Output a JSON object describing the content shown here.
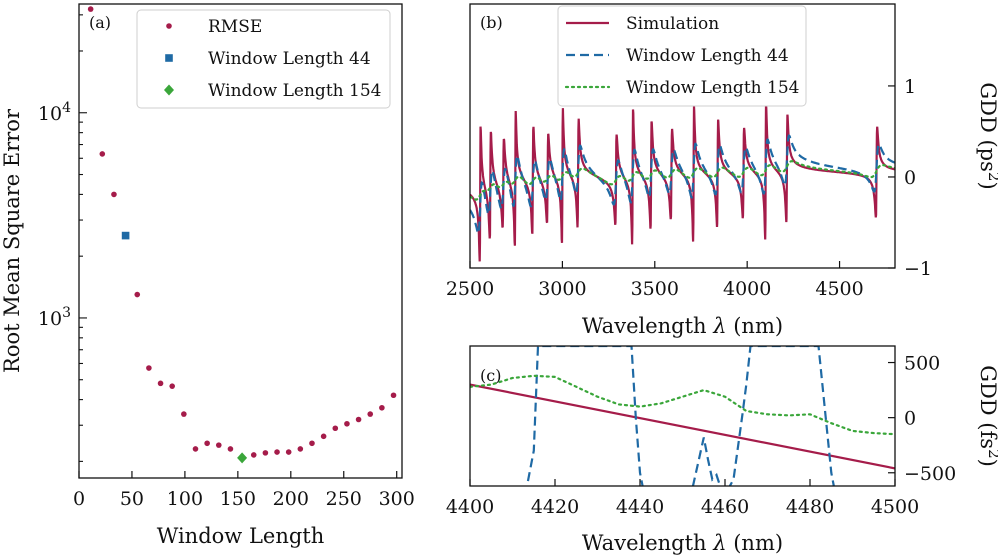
{
  "chart_data": [
    {
      "id": "a",
      "type": "scatter",
      "panel_label": "(a)",
      "xlabel": "Window Length",
      "ylabel": "Root Mean Square Error",
      "xlim": [
        0,
        305
      ],
      "ylim_log10": [
        2.22,
        4.53
      ],
      "yscale": "log",
      "x_ticks": [
        0,
        50,
        100,
        150,
        200,
        250,
        300
      ],
      "y_ticks": [
        {
          "value": 1000,
          "base": "10",
          "exp": "3"
        },
        {
          "value": 10000,
          "base": "10",
          "exp": "4"
        }
      ],
      "legend_position": "top-right",
      "series": [
        {
          "name": "RMSE",
          "color": "#a51c4a",
          "marker": "circle",
          "x": [
            11,
            22,
            33,
            55,
            66,
            77,
            88,
            99,
            110,
            121,
            132,
            143,
            165,
            176,
            187,
            198,
            209,
            220,
            231,
            242,
            253,
            264,
            275,
            286,
            297
          ],
          "y": [
            32000,
            6300,
            4000,
            1300,
            570,
            480,
            465,
            340,
            230,
            245,
            240,
            230,
            215,
            220,
            222,
            222,
            230,
            245,
            265,
            290,
            305,
            320,
            340,
            365,
            420
          ]
        },
        {
          "name": "Window Length 44",
          "color": "#1f6aa5",
          "marker": "square",
          "x": [
            44
          ],
          "y": [
            2520
          ]
        },
        {
          "name": "Window Length 154",
          "color": "#3aa63a",
          "marker": "diamond",
          "x": [
            154
          ],
          "y": [
            208
          ]
        }
      ]
    },
    {
      "id": "b",
      "type": "line",
      "panel_label": "(b)",
      "xlabel": "Wavelength",
      "xlabel_symbol": "λ",
      "xlabel_unit": "(nm)",
      "ylabel": "GDD (ps",
      "ylabel_sup": "2",
      "ylabel_close": ")",
      "xlim": [
        2500,
        4800
      ],
      "ylim": [
        -1,
        1.9
      ],
      "x_ticks": [
        2500,
        3000,
        3500,
        4000,
        4500
      ],
      "y_ticks": [
        1,
        0,
        -1
      ],
      "y_tick_labels": [
        "1",
        "0",
        "−1"
      ],
      "legend_position": "top-left",
      "resonances_nm": [
        2555,
        2610,
        2680,
        2745,
        2840,
        2920,
        3000,
        3085,
        3290,
        3380,
        3480,
        3590,
        3710,
        3840,
        3980,
        4100,
        4215,
        4700
      ],
      "series": [
        {
          "name": "Simulation",
          "color": "#a51c4a",
          "style": "solid"
        },
        {
          "name": "Window Length 44",
          "color": "#1f6aa5",
          "style": "dashed"
        },
        {
          "name": "Window Length 154",
          "color": "#3aa63a",
          "style": "dotted"
        }
      ]
    },
    {
      "id": "c",
      "type": "line",
      "panel_label": "(c)",
      "xlabel": "Wavelength",
      "xlabel_symbol": "λ",
      "xlabel_unit": "(nm)",
      "ylabel": "GDD (fs",
      "ylabel_sup": "2",
      "ylabel_close": ")",
      "xlim": [
        4400,
        4500
      ],
      "ylim": [
        -620,
        650
      ],
      "x_ticks": [
        4400,
        4420,
        4440,
        4460,
        4480,
        4500
      ],
      "y_ticks": [
        500,
        0,
        -500
      ],
      "y_tick_labels": [
        "500",
        "0",
        "−500"
      ],
      "series": [
        {
          "name": "Simulation",
          "color": "#a51c4a",
          "style": "solid",
          "x": [
            4400,
            4500
          ],
          "y": [
            300,
            -460
          ]
        },
        {
          "name": "Window Length 44",
          "color": "#1f6aa5",
          "style": "dashed",
          "x": [
            4413,
            4415,
            4416,
            4438,
            4439,
            4440,
            4441,
            4452,
            4455,
            4456,
            4457,
            4458,
            4459,
            4460,
            4462,
            4464,
            4465,
            4466,
            4467,
            4482,
            4485,
            4486
          ],
          "y": [
            -700,
            -300,
            650,
            650,
            0,
            -500,
            -700,
            -700,
            -180,
            -380,
            -560,
            -520,
            -640,
            -700,
            -560,
            0,
            300,
            650,
            650,
            650,
            -500,
            -700
          ]
        },
        {
          "name": "Window Length 154",
          "color": "#3aa63a",
          "style": "dotted",
          "x": [
            4400,
            4405,
            4410,
            4415,
            4420,
            4425,
            4430,
            4435,
            4440,
            4445,
            4450,
            4455,
            4460,
            4465,
            4470,
            4475,
            4480,
            4485,
            4490,
            4495,
            4500
          ],
          "y": [
            280,
            300,
            360,
            380,
            370,
            280,
            190,
            120,
            100,
            130,
            190,
            250,
            190,
            60,
            30,
            20,
            30,
            -50,
            -120,
            -140,
            -150
          ]
        }
      ]
    }
  ]
}
